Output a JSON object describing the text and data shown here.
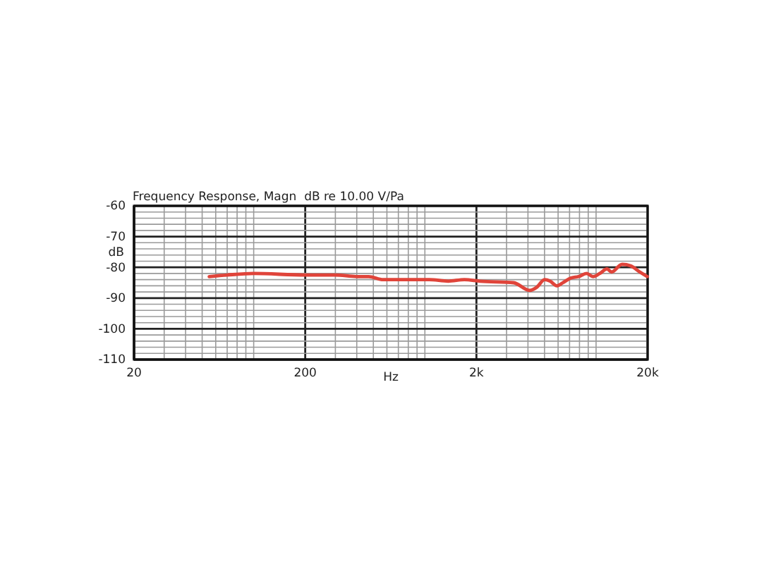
{
  "chart_data": {
    "type": "line",
    "title": "Frequency Response, Magn  dB re 10.00 V/Pa",
    "xlabel": "Hz",
    "ylabel": "dB",
    "log": "x",
    "grid": true,
    "x": [
      55,
      70,
      100,
      200,
      300,
      400,
      470,
      570,
      880,
      1060,
      1370,
      1700,
      2100,
      3300,
      4100,
      4500,
      5000,
      5400,
      5900,
      6400,
      7100,
      7900,
      8800,
      9600,
      10500,
      11600,
      12300,
      14200,
      15900,
      18000,
      19900
    ],
    "series": [
      {
        "color": "#e0443a",
        "values": [
          -83,
          -82.5,
          -82,
          -82.5,
          -82.5,
          -83,
          -83,
          -84,
          -84,
          -84,
          -84.5,
          -84,
          -84.5,
          -85,
          -87.5,
          -86.5,
          -84,
          -84.5,
          -86,
          -85,
          -83.5,
          -83,
          -82,
          -83,
          -82,
          -80.5,
          -81.5,
          -79,
          -79.5,
          -81.5,
          -83
        ]
      }
    ],
    "xlim": [
      20,
      20000
    ],
    "xticks": [
      20,
      {
        "value": 30,
        "label": null
      },
      {
        "value": 40,
        "label": null
      },
      {
        "value": 50,
        "label": null
      },
      {
        "value": 60,
        "label": null
      },
      {
        "value": 70,
        "label": null
      },
      {
        "value": 80,
        "label": null
      },
      {
        "value": 90,
        "label": null
      },
      {
        "value": 100,
        "label": null
      },
      200,
      {
        "value": 300,
        "label": null
      },
      {
        "value": 400,
        "label": null
      },
      {
        "value": 500,
        "label": null
      },
      {
        "value": 600,
        "label": null
      },
      {
        "value": 700,
        "label": null
      },
      {
        "value": 800,
        "label": null
      },
      {
        "value": 900,
        "label": null
      },
      {
        "value": 1000,
        "label": null
      },
      {
        "value": 2000,
        "label": "2k"
      },
      {
        "value": 3000,
        "label": null
      },
      {
        "value": 4000,
        "label": null
      },
      {
        "value": 5000,
        "label": null
      },
      {
        "value": 6000,
        "label": null
      },
      {
        "value": 7000,
        "label": null
      },
      {
        "value": 8000,
        "label": null
      },
      {
        "value": 9000,
        "label": null
      },
      {
        "value": 10000,
        "label": null
      },
      {
        "value": 20000,
        "label": "20k"
      }
    ],
    "ylim": [
      -110,
      -60
    ],
    "yticks": [
      -110,
      {
        "value": -108,
        "label": null
      },
      {
        "value": -106,
        "label": null
      },
      {
        "value": -104,
        "label": null
      },
      {
        "value": -102,
        "label": null
      },
      -100,
      {
        "value": -98,
        "label": null
      },
      {
        "value": -96,
        "label": null
      },
      {
        "value": -94,
        "label": null
      },
      {
        "value": -92,
        "label": null
      },
      -90,
      {
        "value": -88,
        "label": null
      },
      {
        "value": -86,
        "label": null
      },
      {
        "value": -84,
        "label": null
      },
      {
        "value": -82,
        "label": null
      },
      -80,
      {
        "value": -78,
        "label": null
      },
      {
        "value": -76,
        "label": null
      },
      {
        "value": -74,
        "label": null
      },
      {
        "value": -72,
        "label": null
      },
      -70,
      {
        "value": -68,
        "label": null
      },
      {
        "value": -66,
        "label": null
      },
      {
        "value": -64,
        "label": null
      },
      {
        "value": -62,
        "label": null
      },
      -60
    ]
  }
}
